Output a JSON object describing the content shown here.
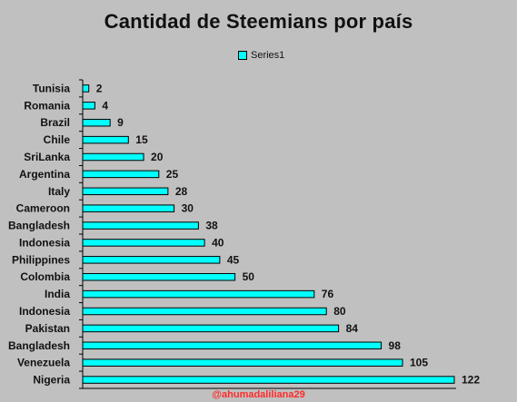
{
  "chart_data": {
    "type": "bar",
    "orientation": "horizontal",
    "title": "Cantidad de Steemians por país",
    "xlabel": "",
    "ylabel": "",
    "categories": [
      "Tunisia",
      "Romania",
      "Brazil",
      "Chile",
      "SriLanka",
      "Argentina",
      "Italy",
      "Cameroon",
      "Bangladesh",
      "Indonesia",
      "Philippines",
      "Colombia",
      "India",
      "Indonesia",
      "Pakistan",
      "Bangladesh",
      "Venezuela",
      "Nigeria"
    ],
    "series": [
      {
        "name": "Series1",
        "values": [
          2,
          4,
          9,
          15,
          20,
          25,
          28,
          30,
          38,
          40,
          45,
          50,
          76,
          80,
          84,
          98,
          105,
          122
        ],
        "color": "#00ffff"
      }
    ],
    "xlim": [
      0,
      122
    ],
    "grid": false,
    "legend_position": "top-center",
    "data_labels": true,
    "background_color": "#c0c0c0"
  },
  "legend": {
    "label": "Series1"
  },
  "footer": {
    "credit": "@ahumadaliliana29"
  },
  "colors": {
    "bar_fill": "#00ffff",
    "bar_stroke": "#000000",
    "credit": "#ff2a2a"
  }
}
